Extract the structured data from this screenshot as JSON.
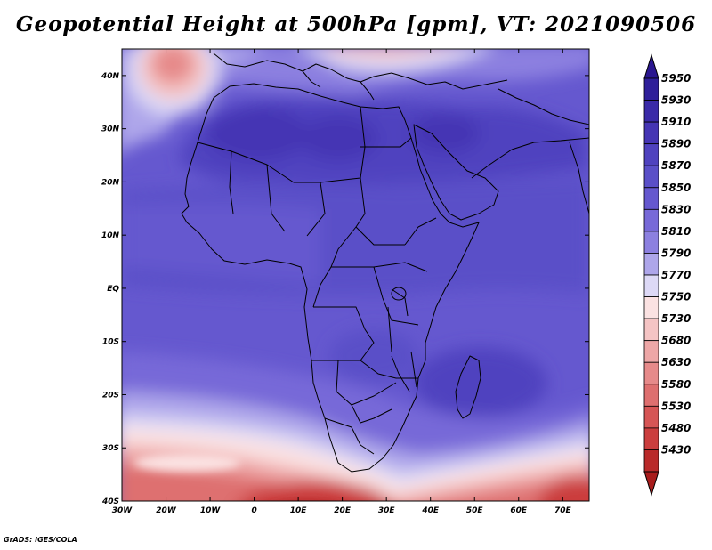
{
  "title": "Geopotential Height at 500hPa [gpm], VT: 2021090506",
  "credit": "GrADS: IGES/COLA",
  "map": {
    "lon_range": [
      -30,
      76
    ],
    "lat_range": [
      -40,
      45
    ],
    "lon_ticks": [
      {
        "v": -30,
        "label": "30W"
      },
      {
        "v": -20,
        "label": "20W"
      },
      {
        "v": -10,
        "label": "10W"
      },
      {
        "v": 0,
        "label": "0"
      },
      {
        "v": 10,
        "label": "10E"
      },
      {
        "v": 20,
        "label": "20E"
      },
      {
        "v": 30,
        "label": "30E"
      },
      {
        "v": 40,
        "label": "40E"
      },
      {
        "v": 50,
        "label": "50E"
      },
      {
        "v": 60,
        "label": "60E"
      },
      {
        "v": 70,
        "label": "70E"
      }
    ],
    "lat_ticks": [
      {
        "v": 40,
        "label": "40N"
      },
      {
        "v": 30,
        "label": "30N"
      },
      {
        "v": 20,
        "label": "20N"
      },
      {
        "v": 10,
        "label": "10N"
      },
      {
        "v": 0,
        "label": "EQ"
      },
      {
        "v": -10,
        "label": "10S"
      },
      {
        "v": -20,
        "label": "20S"
      },
      {
        "v": -30,
        "label": "30S"
      },
      {
        "v": -40,
        "label": "40S"
      }
    ]
  },
  "colorbar": {
    "levels": [
      {
        "label": "5950",
        "color": "#2f1f9a"
      },
      {
        "label": "5930",
        "color": "#3a2aa8"
      },
      {
        "label": "5910",
        "color": "#4535b4"
      },
      {
        "label": "5890",
        "color": "#4f42bf"
      },
      {
        "label": "5870",
        "color": "#5a4fc8"
      },
      {
        "label": "5850",
        "color": "#6558cf"
      },
      {
        "label": "5830",
        "color": "#7769d8"
      },
      {
        "label": "5810",
        "color": "#8c80e0"
      },
      {
        "label": "5790",
        "color": "#aea6ea"
      },
      {
        "label": "5770",
        "color": "#ddd9f6"
      },
      {
        "label": "5750",
        "color": "#fbe2e2"
      },
      {
        "label": "5730",
        "color": "#f5c4c4"
      },
      {
        "label": "5680",
        "color": "#eea7a7"
      },
      {
        "label": "5630",
        "color": "#e68a8a"
      },
      {
        "label": "5580",
        "color": "#de6f6f"
      },
      {
        "label": "5530",
        "color": "#d65555"
      },
      {
        "label": "5480",
        "color": "#cb3e3e"
      },
      {
        "label": "5430",
        "color": "#b92a2a"
      }
    ],
    "top_arrow_color": "#2a1690",
    "bottom_arrow_color": "#a81c1c"
  }
}
